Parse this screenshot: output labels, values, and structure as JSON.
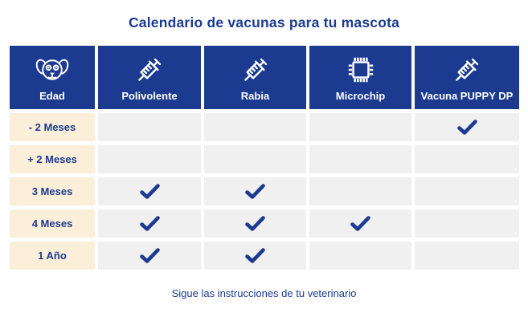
{
  "title": "Calendario de vacunas para tu mascota",
  "footer": "Sigue las instrucciones de tu veterinario",
  "colors": {
    "navy": "#1c3b90",
    "cream": "#fbefd9",
    "gray": "#f0f0f0",
    "background": "#ffffff",
    "check": "#1c3b90"
  },
  "table": {
    "columns": [
      {
        "label": "Edad",
        "icon": "dog-icon"
      },
      {
        "label": "Polivolente",
        "icon": "syringe-icon"
      },
      {
        "label": "Rabia",
        "icon": "syringe-icon"
      },
      {
        "label": "Microchip",
        "icon": "microchip-icon"
      },
      {
        "label": "Vacuna PUPPY DP",
        "icon": "syringe-icon"
      }
    ],
    "rows": [
      {
        "label": "- 2 Meses",
        "checks": [
          false,
          false,
          false,
          true
        ]
      },
      {
        "label": "+ 2 Meses",
        "checks": [
          false,
          false,
          false,
          false
        ]
      },
      {
        "label": "3 Meses",
        "checks": [
          true,
          true,
          false,
          false
        ]
      },
      {
        "label": "4 Meses",
        "checks": [
          true,
          true,
          true,
          false
        ]
      },
      {
        "label": "1 Año",
        "checks": [
          true,
          true,
          false,
          false
        ]
      }
    ]
  }
}
